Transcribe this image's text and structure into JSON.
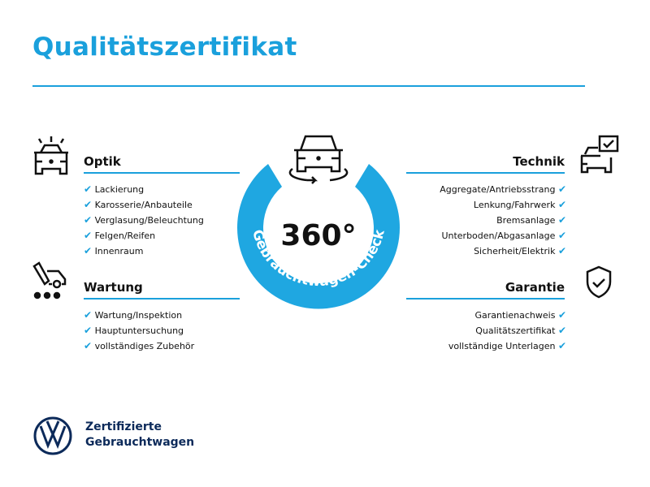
{
  "title": "Qualitätszertifikat",
  "badge": {
    "number": "360°",
    "arc_text": "Gebrauchtwagen-Check",
    "color": "#1fa7e1"
  },
  "sections": {
    "optik": {
      "title": "Optik",
      "items": [
        "Lackierung",
        "Karosserie/Anbauteile",
        "Verglasung/Beleuchtung",
        "Felgen/Reifen",
        "Innenraum"
      ]
    },
    "wartung": {
      "title": "Wartung",
      "items": [
        "Wartung/Inspektion",
        "Hauptuntersuchung",
        "vollständiges Zubehör"
      ]
    },
    "technik": {
      "title": "Technik",
      "items": [
        "Aggregate/Antriebsstrang",
        "Lenkung/Fahrwerk",
        "Bremsanlage",
        "Unterboden/Abgasanlage",
        "Sicherheit/Elektrik"
      ]
    },
    "garantie": {
      "title": "Garantie",
      "items": [
        "Garantienachweis",
        "Qualitätszertifikat",
        "vollständige Unterlagen"
      ]
    }
  },
  "check_mark": "✔",
  "brand": {
    "line1": "Zertifizierte",
    "line2": "Gebrauchtwagen"
  }
}
